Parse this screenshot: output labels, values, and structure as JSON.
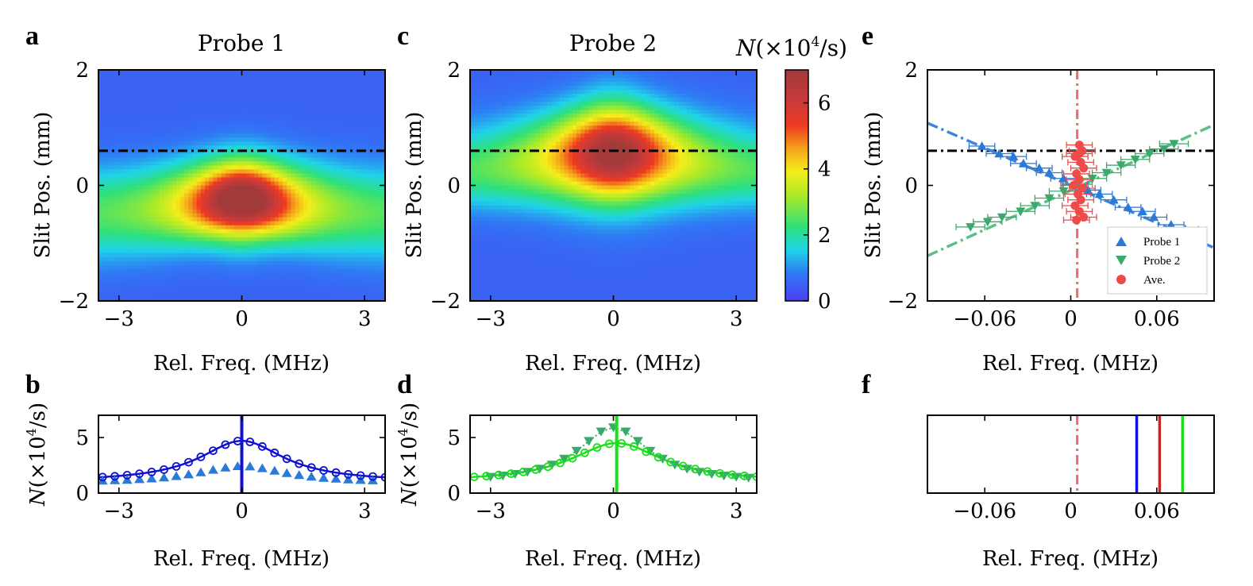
{
  "colors": {
    "probe1": "#2a7ad6",
    "probe1_fit": "#1010d0",
    "probe2": "#3aaa6a",
    "probe2_fit": "#19e019",
    "ave": "#ee4b4b",
    "ave_line": "#f06a6a",
    "marker_red": "#e01818",
    "ref_line": "#000000"
  },
  "colorbar": {
    "title_prefix": "N",
    "title_suffix": "(×10",
    "title_exp": "4",
    "title_end": "/s)",
    "ticks": [
      "0",
      "2",
      "4",
      "6"
    ],
    "range": [
      0,
      7
    ]
  },
  "chart_data": [
    {
      "panel": "a",
      "type": "heatmap",
      "title": "Probe 1",
      "xlabel": "Rel. Freq. (MHz)",
      "ylabel": "Slit Pos. (mm)",
      "xlim": [
        -3.5,
        3.5
      ],
      "ylim": [
        -2,
        2
      ],
      "xticks": [
        -3,
        0,
        3
      ],
      "yticks": [
        -2,
        0,
        2
      ],
      "xtick_labels": [
        "−3",
        "0",
        "3"
      ],
      "ytick_labels": [
        "−2",
        "0",
        "2"
      ],
      "peak": {
        "x": 0,
        "y": -0.25,
        "value": 6.5
      },
      "reference_line_y": 0.6
    },
    {
      "panel": "b",
      "type": "line",
      "xlabel": "Rel. Freq. (MHz)",
      "ylabel_prefix": "N",
      "ylabel_suffix": "(×10",
      "ylabel_exp": "4",
      "ylabel_end": "/s)",
      "xlim": [
        -3.5,
        3.5
      ],
      "ylim": [
        0,
        7
      ],
      "xticks": [
        -3,
        0,
        3
      ],
      "yticks": [
        0,
        5
      ],
      "xtick_labels": [
        "−3",
        "0",
        "3"
      ],
      "ytick_labels": [
        "0",
        "5"
      ],
      "vline_x": 0.0,
      "fit": {
        "center": 0.0,
        "amp": 3.7,
        "base": 1.0,
        "gamma": 1.25
      },
      "circles_x": [
        -3.4,
        -3.1,
        -2.8,
        -2.5,
        -2.2,
        -1.9,
        -1.6,
        -1.3,
        -1.0,
        -0.7,
        -0.4,
        -0.1,
        0.2,
        0.5,
        0.8,
        1.1,
        1.4,
        1.7,
        2.0,
        2.3,
        2.6,
        2.9,
        3.2,
        3.5
      ],
      "triangles_x": [
        -3.4,
        -3.1,
        -2.8,
        -2.5,
        -2.2,
        -1.9,
        -1.6,
        -1.3,
        -1.0,
        -0.7,
        -0.4,
        -0.1,
        0.2,
        0.5,
        0.8,
        1.1,
        1.4,
        1.7,
        2.0,
        2.3,
        2.6,
        2.9,
        3.2
      ],
      "triangles_fit": {
        "center": 0.0,
        "amp": 1.5,
        "base": 0.95,
        "gamma": 1.3
      }
    },
    {
      "panel": "c",
      "type": "heatmap",
      "title": "Probe 2",
      "xlabel": "Rel. Freq. (MHz)",
      "ylabel": "Slit Pos. (mm)",
      "xlim": [
        -3.5,
        3.5
      ],
      "ylim": [
        -2,
        2
      ],
      "xticks": [
        -3,
        0,
        3
      ],
      "yticks": [
        -2,
        0,
        2
      ],
      "xtick_labels": [
        "−3",
        "0",
        "3"
      ],
      "ytick_labels": [
        "−2",
        "0",
        "2"
      ],
      "peak": {
        "x": 0.1,
        "y": 0.55,
        "value": 6.5
      },
      "reference_line_y": 0.6
    },
    {
      "panel": "d",
      "type": "line",
      "xlabel": "Rel. Freq. (MHz)",
      "ylabel_prefix": "N",
      "ylabel_suffix": "(×10",
      "ylabel_exp": "4",
      "ylabel_end": "/s)",
      "xlim": [
        -3.5,
        3.5
      ],
      "ylim": [
        0,
        7
      ],
      "xticks": [
        -3,
        0,
        3
      ],
      "yticks": [
        0,
        5
      ],
      "xtick_labels": [
        "−3",
        "0",
        "3"
      ],
      "ytick_labels": [
        "0",
        "5"
      ],
      "vline_x": 0.08,
      "fit": {
        "center": 0.08,
        "amp": 3.5,
        "base": 1.0,
        "gamma": 1.35
      },
      "circles_x": [
        -3.4,
        -3.1,
        -2.8,
        -2.5,
        -2.2,
        -1.9,
        -1.6,
        -1.3,
        -1.0,
        -0.7,
        -0.4,
        -0.1,
        0.2,
        0.5,
        0.8,
        1.1,
        1.4,
        1.7,
        2.0,
        2.3,
        2.6,
        2.9,
        3.2,
        3.5
      ],
      "triangles_x": [
        -3.0,
        -2.7,
        -2.4,
        -2.1,
        -1.8,
        -1.5,
        -1.2,
        -0.9,
        -0.6,
        -0.3,
        0.0,
        0.3,
        0.6,
        0.9,
        1.2,
        1.5,
        1.8,
        2.1,
        2.4,
        2.7,
        3.0,
        3.3
      ],
      "triangles_fit": {
        "center": 0.0,
        "amp": 5.0,
        "base": 0.9,
        "gamma": 1.05
      }
    },
    {
      "panel": "e",
      "type": "scatter",
      "xlabel": "Rel. Freq. (MHz)",
      "ylabel": "Slit Pos. (mm)",
      "xlim": [
        -0.1,
        0.1
      ],
      "ylim": [
        -2,
        2
      ],
      "xticks": [
        -0.06,
        0,
        0.06
      ],
      "yticks": [
        -2,
        0,
        2
      ],
      "xtick_labels": [
        "−0.06",
        "0",
        "0.06"
      ],
      "ytick_labels": [
        "−2",
        "0",
        "2"
      ],
      "reference_line_y": 0.6,
      "ave_line_x": 0.0045,
      "legend": [
        "Probe 1",
        "Probe 2",
        "Ave."
      ],
      "probe1_fit": {
        "x1": -0.1,
        "y1": 1.08,
        "x2": 0.1,
        "y2": -1.08
      },
      "probe2_fit": {
        "x1": -0.1,
        "y1": -1.22,
        "x2": 0.1,
        "y2": 1.05
      },
      "series": [
        {
          "name": "Probe 1",
          "x": [
            -0.062,
            -0.05,
            -0.04,
            -0.033,
            -0.022,
            -0.015,
            -0.005,
            0.003,
            0.012,
            0.02,
            0.03,
            0.04,
            0.05,
            0.058,
            0.07,
            0.08
          ],
          "y": [
            0.68,
            0.55,
            0.5,
            0.38,
            0.3,
            0.22,
            0.12,
            0.02,
            -0.08,
            -0.15,
            -0.25,
            -0.38,
            -0.45,
            -0.55,
            -0.68,
            -0.76
          ],
          "xerr": 0.009
        },
        {
          "name": "Probe 2",
          "x": [
            -0.07,
            -0.058,
            -0.048,
            -0.035,
            -0.025,
            -0.015,
            -0.005,
            0.005,
            0.015,
            0.025,
            0.035,
            0.045,
            0.055,
            0.065,
            0.072
          ],
          "y": [
            -0.72,
            -0.63,
            -0.55,
            -0.45,
            -0.35,
            -0.22,
            -0.1,
            0.02,
            0.12,
            0.22,
            0.35,
            0.45,
            0.55,
            0.63,
            0.72
          ],
          "xerr": 0.01
        },
        {
          "name": "Ave.",
          "x": [
            0.006,
            0.008,
            0.003,
            0.007,
            0.009,
            0.004,
            0.006,
            0.002,
            0.008,
            0.005,
            0.007,
            0.003,
            0.006,
            0.009,
            0.004,
            0.006
          ],
          "y": [
            0.7,
            0.6,
            0.5,
            0.4,
            0.3,
            0.2,
            0.1,
            0.0,
            -0.05,
            -0.15,
            -0.25,
            -0.35,
            -0.45,
            -0.55,
            -0.6,
            0.55
          ],
          "xerr": 0.009
        }
      ]
    },
    {
      "panel": "f",
      "type": "line",
      "xlabel": "Rel. Freq. (MHz)",
      "xlim": [
        -0.1,
        0.1
      ],
      "xticks": [
        -0.06,
        0,
        0.06
      ],
      "xtick_labels": [
        "−0.06",
        "0",
        "0.06"
      ],
      "vlines": [
        {
          "x": 0.0045,
          "style": "dashdot",
          "color": "#f06a6a"
        },
        {
          "x": 0.046,
          "style": "solid",
          "color": "#1010ee"
        },
        {
          "x": 0.062,
          "style": "solid",
          "color": "#e01818"
        },
        {
          "x": 0.078,
          "style": "solid",
          "color": "#19e019"
        }
      ]
    }
  ]
}
